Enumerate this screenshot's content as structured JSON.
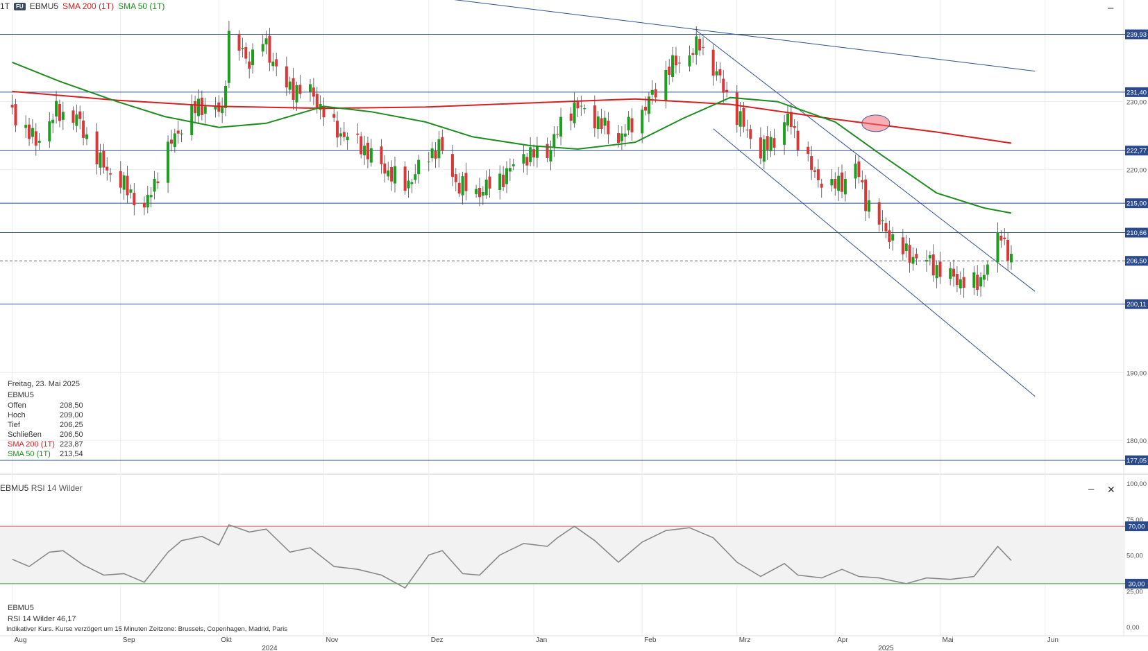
{
  "header": {
    "timeframe": "1T",
    "source_badge": "FU",
    "symbol": "EBMU5",
    "sma200_label": "SMA 200 (1T)",
    "sma50_label": "SMA 50 (1T)"
  },
  "info_panel": {
    "date": "Freitag, 23. Mai 2025",
    "symbol": "EBMU5",
    "rows": [
      {
        "label": "Offen",
        "value": "208,50"
      },
      {
        "label": "Hoch",
        "value": "209,00"
      },
      {
        "label": "Tief",
        "value": "206,25"
      },
      {
        "label": "Schließen",
        "value": "206,50"
      },
      {
        "label": "SMA 200 (1T)",
        "value": "223,87"
      },
      {
        "label": "SMA 50 (1T)",
        "value": "213,54"
      }
    ]
  },
  "rsi_panel": {
    "title_symbol": "EBMU5",
    "title_indicator": "RSI 14 Wilder",
    "info_symbol": "EBMU5",
    "info_label": "RSI 14 Wilder",
    "info_value": "46,17"
  },
  "footnote": "Indikativer Kurs. Kurse verzögert um 15 Minuten   Zeitzone: Brussels, Copenhagen, Madrid, Paris",
  "controls": {
    "minimize": "–",
    "close": "✕"
  },
  "colors": {
    "up": "#1e9e1e",
    "down": "#d93838",
    "sma200": "#d42020",
    "sma50": "#1e8c1e",
    "hline": "#2f4f8f",
    "badge": "#2a4a8c",
    "rsi_line": "#888888"
  },
  "chart_data": {
    "type": "candlestick",
    "price_axis": {
      "min": 175,
      "max": 245,
      "ticks": [
        {
          "v": 230,
          "t": "230,00"
        },
        {
          "v": 220,
          "t": "220,00"
        },
        {
          "v": 190,
          "t": "190,00"
        },
        {
          "v": 180,
          "t": "180,00"
        }
      ]
    },
    "levels": [
      {
        "v": 239.93,
        "t": "239,93"
      },
      {
        "v": 231.4,
        "t": "231,40"
      },
      {
        "v": 222.77,
        "t": "222,77"
      },
      {
        "v": 215.0,
        "t": "215,00"
      },
      {
        "v": 210.66,
        "t": "210,66"
      },
      {
        "v": 200.11,
        "t": "200,11"
      },
      {
        "v": 177.05,
        "t": "177,05"
      }
    ],
    "last_price": {
      "v": 206.5,
      "t": "206,50"
    },
    "months": [
      {
        "label": "Aug",
        "date": "2024-08-01"
      },
      {
        "label": "Sep",
        "date": "2024-09-02"
      },
      {
        "label": "Okt",
        "date": "2024-10-01"
      },
      {
        "label": "Nov",
        "date": "2024-11-01"
      },
      {
        "label": "Dez",
        "date": "2024-12-02"
      },
      {
        "label": "Jan",
        "date": "2025-01-02"
      },
      {
        "label": "Feb",
        "date": "2025-02-03"
      },
      {
        "label": "Mrz",
        "date": "2025-03-03"
      },
      {
        "label": "Apr",
        "date": "2025-04-01"
      },
      {
        "label": "Mai",
        "date": "2025-05-02"
      },
      {
        "label": "Jun",
        "date": "2025-06-02"
      }
    ],
    "years": [
      {
        "label": "2024",
        "date": "2024-10-16"
      },
      {
        "label": "2025",
        "date": "2025-04-16"
      }
    ],
    "close_path": [
      {
        "d": "2024-08-01",
        "v": 228.5
      },
      {
        "d": "2024-08-08",
        "v": 224.0
      },
      {
        "d": "2024-08-14",
        "v": 228.5
      },
      {
        "d": "2024-08-20",
        "v": 227.5
      },
      {
        "d": "2024-08-27",
        "v": 221.0
      },
      {
        "d": "2024-09-05",
        "v": 216.5
      },
      {
        "d": "2024-09-09",
        "v": 214.0
      },
      {
        "d": "2024-09-13",
        "v": 219.5
      },
      {
        "d": "2024-09-18",
        "v": 225.0
      },
      {
        "d": "2024-09-25",
        "v": 229.5
      },
      {
        "d": "2024-10-02",
        "v": 228.5
      },
      {
        "d": "2024-10-04",
        "v": 239.5
      },
      {
        "d": "2024-10-10",
        "v": 236.0
      },
      {
        "d": "2024-10-14",
        "v": 239.0
      },
      {
        "d": "2024-10-21",
        "v": 232.0
      },
      {
        "d": "2024-10-28",
        "v": 231.5
      },
      {
        "d": "2024-11-04",
        "v": 226.0
      },
      {
        "d": "2024-11-12",
        "v": 223.5
      },
      {
        "d": "2024-11-18",
        "v": 220.5
      },
      {
        "d": "2024-11-25",
        "v": 217.5
      },
      {
        "d": "2024-12-02",
        "v": 222.0
      },
      {
        "d": "2024-12-05",
        "v": 223.5
      },
      {
        "d": "2024-12-10",
        "v": 218.0
      },
      {
        "d": "2024-12-16",
        "v": 216.5
      },
      {
        "d": "2024-12-23",
        "v": 218.5
      },
      {
        "d": "2024-12-30",
        "v": 222.0
      },
      {
        "d": "2025-01-06",
        "v": 222.5
      },
      {
        "d": "2025-01-10",
        "v": 226.5
      },
      {
        "d": "2025-01-14",
        "v": 229.5
      },
      {
        "d": "2025-01-20",
        "v": 227.5
      },
      {
        "d": "2025-01-27",
        "v": 224.5
      },
      {
        "d": "2025-02-03",
        "v": 228.5
      },
      {
        "d": "2025-02-11",
        "v": 235.0
      },
      {
        "d": "2025-02-17",
        "v": 237.0
      },
      {
        "d": "2025-02-20",
        "v": 238.5
      },
      {
        "d": "2025-02-25",
        "v": 234.0
      },
      {
        "d": "2025-03-03",
        "v": 228.0
      },
      {
        "d": "2025-03-10",
        "v": 222.5
      },
      {
        "d": "2025-03-14",
        "v": 224.5
      },
      {
        "d": "2025-03-18",
        "v": 227.5
      },
      {
        "d": "2025-03-21",
        "v": 224.5
      },
      {
        "d": "2025-03-26",
        "v": 219.0
      },
      {
        "d": "2025-03-31",
        "v": 217.5
      },
      {
        "d": "2025-04-03",
        "v": 218.0
      },
      {
        "d": "2025-04-07",
        "v": 220.5
      },
      {
        "d": "2025-04-10",
        "v": 215.5
      },
      {
        "d": "2025-04-15",
        "v": 211.5
      },
      {
        "d": "2025-04-22",
        "v": 207.5
      },
      {
        "d": "2025-04-28",
        "v": 206.5
      },
      {
        "d": "2025-05-02",
        "v": 205.0
      },
      {
        "d": "2025-05-08",
        "v": 203.5
      },
      {
        "d": "2025-05-13",
        "v": 203.0
      },
      {
        "d": "2025-05-16",
        "v": 206.0
      },
      {
        "d": "2025-05-20",
        "v": 210.5
      },
      {
        "d": "2025-05-23",
        "v": 206.5
      }
    ],
    "sma200": [
      {
        "d": "2024-08-01",
        "v": 231.5
      },
      {
        "d": "2024-09-01",
        "v": 230.2
      },
      {
        "d": "2024-10-01",
        "v": 229.3
      },
      {
        "d": "2024-11-01",
        "v": 229.0
      },
      {
        "d": "2024-12-01",
        "v": 229.2
      },
      {
        "d": "2025-01-01",
        "v": 229.8
      },
      {
        "d": "2025-02-01",
        "v": 230.4
      },
      {
        "d": "2025-03-01",
        "v": 229.6
      },
      {
        "d": "2025-04-01",
        "v": 227.4
      },
      {
        "d": "2025-05-01",
        "v": 225.5
      },
      {
        "d": "2025-05-23",
        "v": 223.87
      }
    ],
    "sma50": [
      {
        "d": "2024-08-01",
        "v": 235.8
      },
      {
        "d": "2024-08-15",
        "v": 233.0
      },
      {
        "d": "2024-09-01",
        "v": 230.0
      },
      {
        "d": "2024-09-15",
        "v": 227.8
      },
      {
        "d": "2024-10-01",
        "v": 226.2
      },
      {
        "d": "2024-10-15",
        "v": 226.8
      },
      {
        "d": "2024-11-01",
        "v": 229.3
      },
      {
        "d": "2024-11-15",
        "v": 228.5
      },
      {
        "d": "2024-12-01",
        "v": 227.0
      },
      {
        "d": "2024-12-15",
        "v": 224.8
      },
      {
        "d": "2025-01-01",
        "v": 223.5
      },
      {
        "d": "2025-01-15",
        "v": 223.0
      },
      {
        "d": "2025-02-01",
        "v": 224.0
      },
      {
        "d": "2025-02-15",
        "v": 227.5
      },
      {
        "d": "2025-03-01",
        "v": 230.6
      },
      {
        "d": "2025-03-15",
        "v": 230.0
      },
      {
        "d": "2025-04-01",
        "v": 227.0
      },
      {
        "d": "2025-04-15",
        "v": 222.0
      },
      {
        "d": "2025-05-01",
        "v": 216.5
      },
      {
        "d": "2025-05-15",
        "v": 214.3
      },
      {
        "d": "2025-05-23",
        "v": 213.54
      }
    ],
    "trendlines": [
      {
        "from": {
          "d": "2024-09-20",
          "v": 250.0
        },
        "to": {
          "d": "2025-05-30",
          "v": 234.5
        }
      },
      {
        "from": {
          "d": "2025-02-19",
          "v": 240.5
        },
        "to": {
          "d": "2025-05-30",
          "v": 202.0
        }
      },
      {
        "from": {
          "d": "2025-02-24",
          "v": 226.0
        },
        "to": {
          "d": "2025-05-30",
          "v": 186.5
        }
      }
    ],
    "crossover_marker": {
      "d": "2025-04-13",
      "v": 226.8
    },
    "rsi": {
      "axis": {
        "min": 0,
        "max": 100,
        "ticks": [
          {
            "v": 100,
            "t": "100,00"
          },
          {
            "v": 75,
            "t": "75,00"
          },
          {
            "v": 50,
            "t": "50,00"
          },
          {
            "v": 25,
            "t": "25,00"
          },
          {
            "v": 0,
            "t": "0,00"
          }
        ]
      },
      "upper": {
        "v": 70,
        "t": "70,00"
      },
      "lower": {
        "v": 30,
        "t": "30,00"
      },
      "values": [
        {
          "d": "2024-08-01",
          "v": 47
        },
        {
          "d": "2024-08-06",
          "v": 42
        },
        {
          "d": "2024-08-12",
          "v": 52
        },
        {
          "d": "2024-08-16",
          "v": 53
        },
        {
          "d": "2024-08-22",
          "v": 43
        },
        {
          "d": "2024-08-28",
          "v": 36
        },
        {
          "d": "2024-09-03",
          "v": 37
        },
        {
          "d": "2024-09-09",
          "v": 31
        },
        {
          "d": "2024-09-16",
          "v": 52
        },
        {
          "d": "2024-09-20",
          "v": 60
        },
        {
          "d": "2024-09-26",
          "v": 63
        },
        {
          "d": "2024-10-01",
          "v": 57
        },
        {
          "d": "2024-10-04",
          "v": 71
        },
        {
          "d": "2024-10-10",
          "v": 66
        },
        {
          "d": "2024-10-15",
          "v": 68
        },
        {
          "d": "2024-10-22",
          "v": 52
        },
        {
          "d": "2024-10-28",
          "v": 55
        },
        {
          "d": "2024-11-04",
          "v": 42
        },
        {
          "d": "2024-11-11",
          "v": 40
        },
        {
          "d": "2024-11-18",
          "v": 36
        },
        {
          "d": "2024-11-25",
          "v": 27
        },
        {
          "d": "2024-12-02",
          "v": 50
        },
        {
          "d": "2024-12-06",
          "v": 53
        },
        {
          "d": "2024-12-12",
          "v": 37
        },
        {
          "d": "2024-12-17",
          "v": 36
        },
        {
          "d": "2024-12-23",
          "v": 50
        },
        {
          "d": "2024-12-30",
          "v": 58
        },
        {
          "d": "2025-01-06",
          "v": 56
        },
        {
          "d": "2025-01-09",
          "v": 62
        },
        {
          "d": "2025-01-14",
          "v": 70
        },
        {
          "d": "2025-01-20",
          "v": 60
        },
        {
          "d": "2025-01-27",
          "v": 45
        },
        {
          "d": "2025-02-03",
          "v": 59
        },
        {
          "d": "2025-02-10",
          "v": 67
        },
        {
          "d": "2025-02-17",
          "v": 69
        },
        {
          "d": "2025-02-24",
          "v": 62
        },
        {
          "d": "2025-03-03",
          "v": 45
        },
        {
          "d": "2025-03-10",
          "v": 35
        },
        {
          "d": "2025-03-17",
          "v": 44
        },
        {
          "d": "2025-03-21",
          "v": 36
        },
        {
          "d": "2025-03-28",
          "v": 34
        },
        {
          "d": "2025-04-03",
          "v": 40
        },
        {
          "d": "2025-04-08",
          "v": 35
        },
        {
          "d": "2025-04-14",
          "v": 34
        },
        {
          "d": "2025-04-22",
          "v": 30
        },
        {
          "d": "2025-04-28",
          "v": 34
        },
        {
          "d": "2025-05-05",
          "v": 33
        },
        {
          "d": "2025-05-12",
          "v": 35
        },
        {
          "d": "2025-05-19",
          "v": 56
        },
        {
          "d": "2025-05-23",
          "v": 46.17
        }
      ]
    }
  }
}
